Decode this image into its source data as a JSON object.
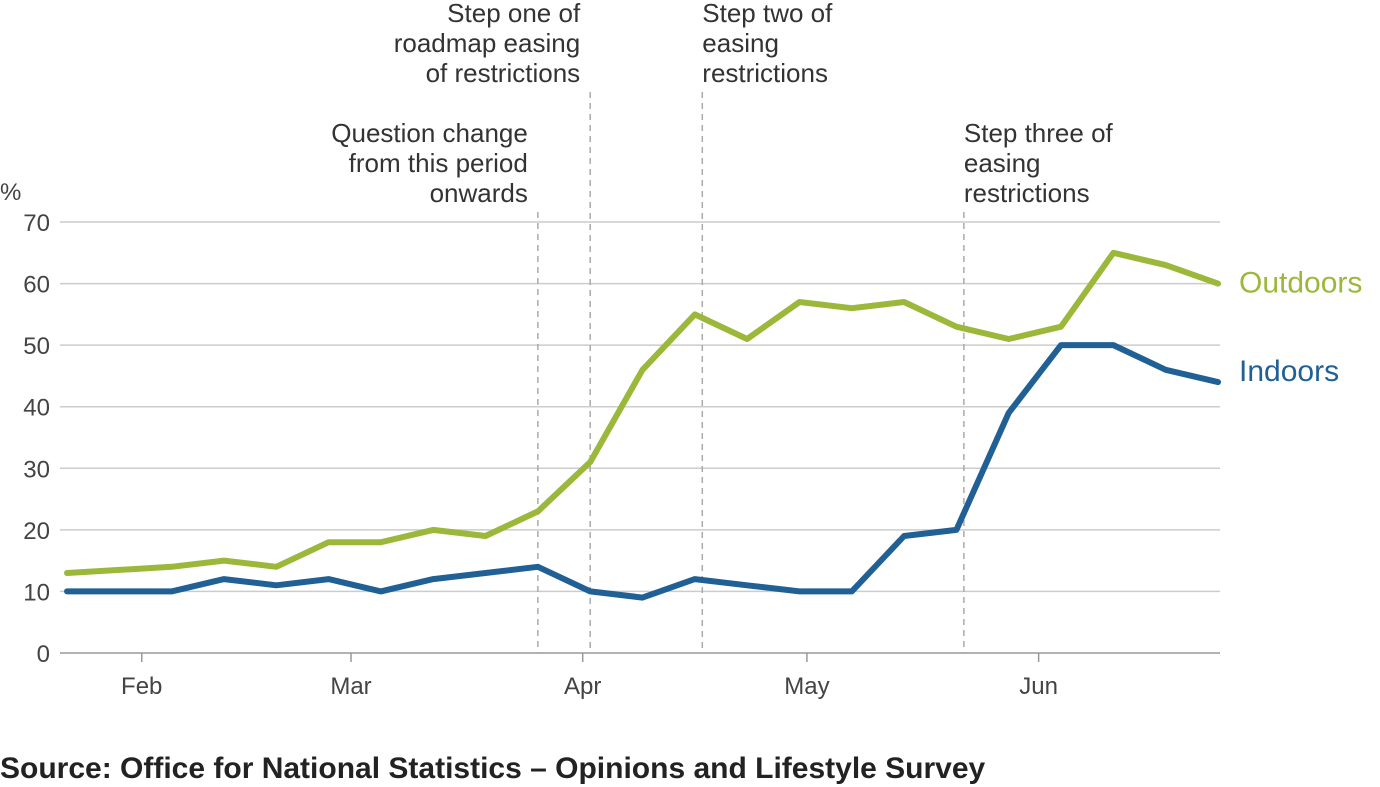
{
  "chart_data": {
    "type": "line",
    "title": "",
    "ylabel": "%",
    "xlabel": "",
    "ylim": [
      0,
      70
    ],
    "yticks": [
      0,
      10,
      20,
      30,
      40,
      50,
      60,
      70
    ],
    "grid": true,
    "x_ticks": [
      {
        "label": "Feb",
        "date": "2021-02-01"
      },
      {
        "label": "Mar",
        "date": "2021-03-01"
      },
      {
        "label": "Apr",
        "date": "2021-04-01"
      },
      {
        "label": "May",
        "date": "2021-05-01"
      },
      {
        "label": "Jun",
        "date": "2021-06-01"
      }
    ],
    "x": [
      "2021-01-22",
      "2021-02-05",
      "2021-02-12",
      "2021-02-19",
      "2021-02-26",
      "2021-03-05",
      "2021-03-12",
      "2021-03-19",
      "2021-03-26",
      "2021-04-02",
      "2021-04-09",
      "2021-04-16",
      "2021-04-23",
      "2021-04-30",
      "2021-05-07",
      "2021-05-14",
      "2021-05-21",
      "2021-05-28",
      "2021-06-04",
      "2021-06-11",
      "2021-06-18",
      "2021-06-25"
    ],
    "series": [
      {
        "name": "Outdoors",
        "color": "#9cb83a",
        "values": [
          13,
          14,
          15,
          14,
          18,
          18,
          20,
          19,
          23,
          31,
          46,
          55,
          51,
          57,
          56,
          57,
          53,
          51,
          53,
          65,
          63,
          60
        ]
      },
      {
        "name": "Indoors",
        "color": "#206095",
        "values": [
          10,
          10,
          12,
          11,
          12,
          10,
          12,
          13,
          14,
          10,
          9,
          12,
          11,
          10,
          10,
          19,
          20,
          39,
          50,
          50,
          46,
          44
        ]
      }
    ],
    "annotations": [
      {
        "date": "2021-03-26",
        "lines": [
          "Question change",
          "from this period",
          "onwards"
        ],
        "align": "end"
      },
      {
        "date": "2021-04-02",
        "lines": [
          "Step one of",
          "roadmap easing",
          "of restrictions"
        ],
        "align": "end"
      },
      {
        "date": "2021-04-17",
        "lines": [
          "Step two of",
          "easing",
          "restrictions"
        ],
        "align": "start"
      },
      {
        "date": "2021-05-22",
        "lines": [
          "Step three of",
          "easing",
          "restrictions"
        ],
        "align": "start"
      }
    ]
  },
  "source": "Source: Office for National Statistics – Opinions and Lifestyle Survey"
}
